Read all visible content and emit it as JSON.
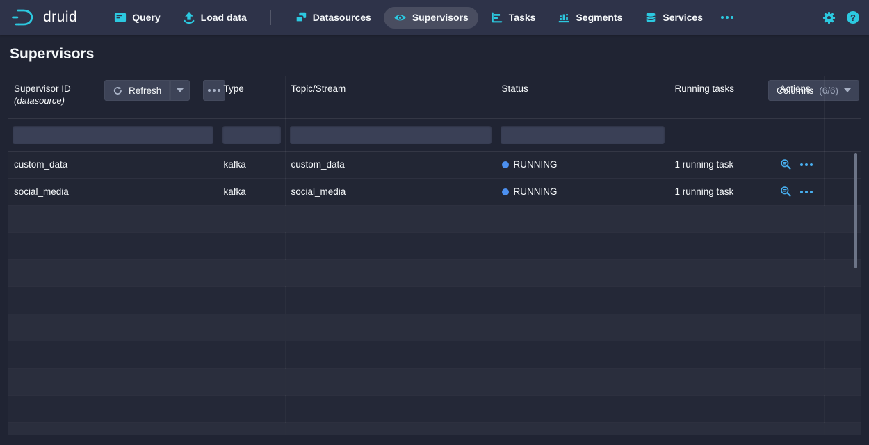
{
  "navbar": {
    "brand": "druid",
    "items": [
      {
        "label": "Query",
        "icon": "query-icon",
        "active": false
      },
      {
        "label": "Load data",
        "icon": "load-data-icon",
        "active": false
      },
      {
        "label": "Datasources",
        "icon": "datasources-icon",
        "active": false
      },
      {
        "label": "Supervisors",
        "icon": "eye-icon",
        "active": true
      },
      {
        "label": "Tasks",
        "icon": "tasks-icon",
        "active": false
      },
      {
        "label": "Segments",
        "icon": "segments-icon",
        "active": false
      },
      {
        "label": "Services",
        "icon": "services-icon",
        "active": false
      }
    ],
    "help_glyph": "?"
  },
  "header": {
    "title": "Supervisors",
    "refresh_label": "Refresh",
    "columns_label": "Columns",
    "columns_count": "(6/6)"
  },
  "table": {
    "columns": [
      {
        "label": "Supervisor ID",
        "sublabel": "(datasource)"
      },
      {
        "label": "Type"
      },
      {
        "label": "Topic/Stream"
      },
      {
        "label": "Status"
      },
      {
        "label": "Running tasks"
      },
      {
        "label": "Actions"
      },
      {
        "label": ""
      }
    ],
    "rows": [
      {
        "supervisor_id": "custom_data",
        "type": "kafka",
        "topic_stream": "custom_data",
        "status": "RUNNING",
        "running_tasks": "1 running task"
      },
      {
        "supervisor_id": "social_media",
        "type": "kafka",
        "topic_stream": "social_media",
        "status": "RUNNING",
        "running_tasks": "1 running task"
      }
    ],
    "empty_rows": 9
  },
  "colors": {
    "accent_cyan": "#2cc9e0",
    "status_blue": "#4c90f0",
    "action_blue": "#48aff0",
    "navbar_bg": "#2e3349",
    "page_bg": "#202433"
  }
}
